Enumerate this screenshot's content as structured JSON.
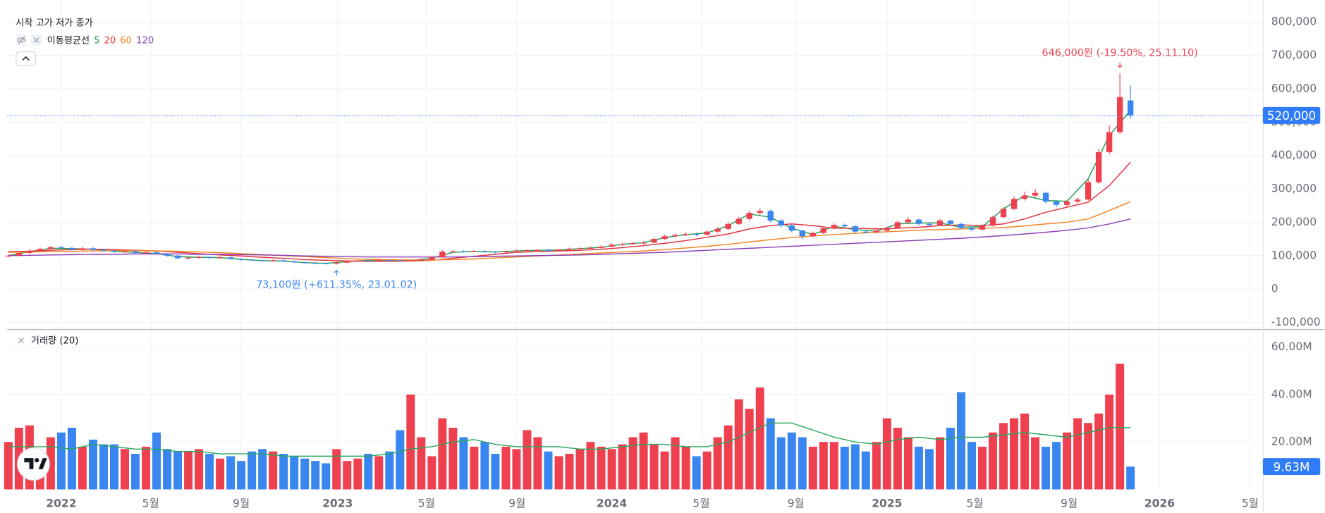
{
  "chart_data": {
    "type": "candlestick",
    "header": "시작 고가 저가 종가",
    "indicator_label": "이동평균선",
    "volume_label": "거래량 (20)",
    "up_color": "#ef4050",
    "down_color": "#3a86f0",
    "grid": true,
    "x": [
      -10,
      -8,
      -6,
      -4,
      -2,
      0,
      2,
      4,
      6,
      8,
      10,
      12,
      14,
      16,
      18,
      20,
      22,
      24,
      26,
      28,
      30,
      32,
      34,
      36,
      38,
      40,
      42,
      44,
      46,
      48,
      50,
      52,
      54,
      56,
      58,
      60,
      62,
      64,
      66,
      68,
      70,
      72,
      74,
      76,
      78,
      80,
      82,
      84,
      86,
      88,
      90,
      92,
      94,
      96,
      98,
      100,
      102,
      104,
      106,
      108,
      110,
      112,
      114,
      116,
      118,
      120,
      122,
      124,
      126,
      128,
      130,
      132,
      134,
      136,
      138,
      140,
      142,
      144,
      146,
      148,
      150,
      152,
      154,
      156,
      158,
      160,
      162,
      164,
      166,
      168,
      170,
      172,
      174,
      176,
      178,
      180,
      182,
      184,
      186,
      188,
      190,
      192,
      194,
      196,
      198,
      200,
      202
    ],
    "open": [
      98000,
      100000,
      108000,
      115000,
      120000,
      125000,
      123000,
      118000,
      122000,
      118000,
      115000,
      112000,
      113000,
      108000,
      110000,
      105000,
      100000,
      92000,
      94000,
      96000,
      93000,
      95000,
      90000,
      88000,
      86000,
      84000,
      86000,
      83000,
      80000,
      78000,
      77000,
      76000,
      79000,
      84000,
      86000,
      85000,
      87000,
      86000,
      85000,
      86000,
      88000,
      95000,
      112000,
      113000,
      112000,
      114000,
      112000,
      110000,
      113000,
      115000,
      116000,
      117000,
      116000,
      118000,
      121000,
      122000,
      123000,
      127000,
      133000,
      135000,
      137000,
      139000,
      150000,
      158000,
      162000,
      165000,
      163000,
      172000,
      180000,
      195000,
      210000,
      228000,
      234000,
      205000,
      190000,
      175000,
      158000,
      168000,
      182000,
      192000,
      188000,
      172000,
      170000,
      175000,
      182000,
      200000,
      208000,
      195000,
      192000,
      205000,
      195000,
      183000,
      178000,
      190000,
      215000,
      240000,
      270000,
      280000,
      288000,
      262000,
      252000,
      262000,
      268000,
      320000,
      410000,
      470000,
      565000
    ],
    "high": [
      104000,
      112000,
      119000,
      124000,
      129000,
      130000,
      126000,
      126000,
      125000,
      121000,
      118000,
      117000,
      116000,
      113000,
      112000,
      107000,
      102000,
      97000,
      99000,
      98000,
      98000,
      97000,
      92000,
      90000,
      88000,
      89000,
      88000,
      85000,
      82000,
      80000,
      79000,
      82000,
      86000,
      88000,
      88000,
      90000,
      89000,
      88000,
      89000,
      91000,
      98000,
      116000,
      117000,
      116000,
      117000,
      116000,
      114000,
      116000,
      118000,
      119000,
      120000,
      120000,
      121000,
      124000,
      125000,
      127000,
      131000,
      137000,
      139000,
      141000,
      143000,
      154000,
      162000,
      167000,
      170000,
      169000,
      176000,
      185000,
      200000,
      216000,
      235000,
      242000,
      238000,
      210000,
      194000,
      178000,
      172000,
      186000,
      197000,
      196000,
      191000,
      176000,
      179000,
      186000,
      205000,
      215000,
      211000,
      199000,
      209000,
      208000,
      198000,
      186000,
      194000,
      220000,
      246000,
      277000,
      292000,
      300000,
      292000,
      266000,
      267000,
      274000,
      328000,
      420000,
      490000,
      646000,
      610000
    ],
    "low": [
      95000,
      98000,
      105000,
      112000,
      117000,
      119000,
      115000,
      115000,
      114000,
      112000,
      108000,
      109000,
      105000,
      105000,
      102000,
      97000,
      89000,
      89000,
      91000,
      90000,
      91000,
      88000,
      85000,
      84000,
      82000,
      82000,
      81000,
      78000,
      76000,
      75000,
      74000,
      73100,
      78000,
      82000,
      83000,
      84000,
      84000,
      83000,
      83000,
      84000,
      87000,
      94000,
      109000,
      109000,
      110000,
      109000,
      107000,
      108000,
      111000,
      113000,
      114000,
      113000,
      114000,
      116000,
      119000,
      120000,
      121000,
      125000,
      130000,
      132000,
      134000,
      137000,
      147000,
      155000,
      158000,
      158000,
      160000,
      169000,
      177000,
      192000,
      206000,
      222000,
      200000,
      185000,
      170000,
      150000,
      155000,
      165000,
      179000,
      183000,
      168000,
      166000,
      167000,
      172000,
      180000,
      196000,
      191000,
      188000,
      190000,
      191000,
      179000,
      173000,
      176000,
      187000,
      212000,
      236000,
      265000,
      275000,
      256000,
      246000,
      248000,
      258000,
      265000,
      315000,
      405000,
      465000,
      510000
    ],
    "close": [
      100000,
      108000,
      115000,
      120000,
      125000,
      123000,
      118000,
      122000,
      118000,
      115000,
      112000,
      113000,
      108000,
      110000,
      105000,
      100000,
      92000,
      94000,
      96000,
      93000,
      95000,
      90000,
      88000,
      86000,
      84000,
      86000,
      83000,
      80000,
      78000,
      77000,
      76000,
      79000,
      84000,
      86000,
      85000,
      87000,
      86000,
      85000,
      86000,
      88000,
      95000,
      112000,
      113000,
      112000,
      114000,
      112000,
      110000,
      113000,
      115000,
      116000,
      117000,
      116000,
      118000,
      121000,
      122000,
      123000,
      127000,
      133000,
      135000,
      137000,
      139000,
      150000,
      158000,
      162000,
      165000,
      163000,
      172000,
      180000,
      195000,
      210000,
      228000,
      234000,
      205000,
      190000,
      175000,
      158000,
      168000,
      182000,
      192000,
      188000,
      172000,
      170000,
      175000,
      182000,
      200000,
      208000,
      195000,
      192000,
      205000,
      195000,
      183000,
      178000,
      190000,
      215000,
      240000,
      270000,
      280000,
      288000,
      262000,
      252000,
      262000,
      268000,
      320000,
      410000,
      470000,
      575000,
      520000
    ],
    "volume": [
      20000000,
      26000000,
      27000000,
      16000000,
      22000000,
      24000000,
      26000000,
      18000000,
      21000000,
      19000000,
      19000000,
      17000000,
      15000000,
      18000000,
      24000000,
      17000000,
      16000000,
      16000000,
      17000000,
      15000000,
      13000000,
      14000000,
      12000000,
      16000000,
      17000000,
      16000000,
      15000000,
      14000000,
      13000000,
      12000000,
      11000000,
      17000000,
      12000000,
      13000000,
      15000000,
      14000000,
      16000000,
      25000000,
      40000000,
      22000000,
      14000000,
      30000000,
      26000000,
      22000000,
      18000000,
      20000000,
      15000000,
      18000000,
      17000000,
      25000000,
      22000000,
      16000000,
      14000000,
      15000000,
      17000000,
      20000000,
      18000000,
      17000000,
      19000000,
      22000000,
      24000000,
      19000000,
      16000000,
      22000000,
      18000000,
      14000000,
      16000000,
      22000000,
      27000000,
      38000000,
      34000000,
      43000000,
      30000000,
      22000000,
      24000000,
      22000000,
      18000000,
      20000000,
      20000000,
      18000000,
      19000000,
      16000000,
      20000000,
      30000000,
      26000000,
      22000000,
      18000000,
      17000000,
      22000000,
      26000000,
      41000000,
      20000000,
      18000000,
      24000000,
      28000000,
      30000000,
      32000000,
      22000000,
      18000000,
      20000000,
      24000000,
      30000000,
      28000000,
      32000000,
      40000000,
      53000000,
      9630000
    ],
    "moving_averages": {
      "x": [
        -10,
        -6,
        -2,
        2,
        6,
        10,
        14,
        18,
        22,
        26,
        30,
        34,
        38,
        42,
        46,
        50,
        54,
        58,
        62,
        66,
        70,
        74,
        78,
        82,
        86,
        90,
        94,
        98,
        102,
        106,
        110,
        114,
        118,
        122,
        126,
        130,
        134,
        138,
        142,
        146,
        150,
        154,
        158,
        162,
        166,
        170,
        174,
        178,
        182,
        186,
        190,
        194,
        198,
        202
      ],
      "series": [
        {
          "name": "5",
          "color": "#1e9e50",
          "values": [
            100000,
            112000,
            122000,
            121000,
            119000,
            113000,
            110000,
            106000,
            97000,
            95000,
            94000,
            89000,
            85000,
            84000,
            79000,
            77000,
            82000,
            86000,
            86000,
            86000,
            92000,
            110000,
            113000,
            111000,
            114000,
            116000,
            117000,
            121000,
            125000,
            134000,
            139000,
            154000,
            163000,
            168000,
            190000,
            225000,
            215000,
            182000,
            163000,
            188000,
            178000,
            173000,
            195000,
            198000,
            198000,
            185000,
            187000,
            240000,
            280000,
            265000,
            263000,
            330000,
            460000,
            535000
          ]
        },
        {
          "name": "20",
          "color": "#e0303f",
          "values": [
            112000,
            113000,
            116000,
            118000,
            119000,
            118000,
            116000,
            114000,
            110000,
            106000,
            102000,
            99000,
            95000,
            92000,
            88000,
            86000,
            84000,
            83000,
            83000,
            84000,
            86000,
            92000,
            98000,
            104000,
            110000,
            112000,
            114000,
            116000,
            119000,
            124000,
            130000,
            137000,
            145000,
            155000,
            165000,
            180000,
            190000,
            195000,
            190000,
            182000,
            182000,
            180000,
            182000,
            185000,
            190000,
            192000,
            190000,
            195000,
            210000,
            230000,
            245000,
            260000,
            310000,
            380000
          ]
        },
        {
          "name": "60",
          "color": "#f5841f",
          "values": [
            110000,
            111000,
            112000,
            113000,
            114000,
            115000,
            115000,
            114000,
            113000,
            111000,
            109000,
            106000,
            103000,
            100000,
            97000,
            94000,
            91000,
            89000,
            88000,
            87000,
            87000,
            88000,
            90000,
            93000,
            96000,
            99000,
            102000,
            105000,
            108000,
            111000,
            114000,
            118000,
            123000,
            128000,
            134000,
            141000,
            148000,
            154000,
            159000,
            163000,
            167000,
            170000,
            173000,
            176000,
            178000,
            180000,
            182000,
            184000,
            189000,
            195000,
            200000,
            210000,
            235000,
            262000
          ]
        },
        {
          "name": "120",
          "color": "#8e3fb5",
          "values": [
            100000,
            101000,
            102000,
            103000,
            104000,
            104000,
            105000,
            105000,
            105000,
            104000,
            104000,
            103000,
            102000,
            101000,
            99000,
            98000,
            97000,
            96000,
            96000,
            96000,
            96000,
            96000,
            97000,
            98000,
            99000,
            100000,
            101000,
            102000,
            104000,
            106000,
            108000,
            110000,
            113000,
            116000,
            119000,
            122000,
            125000,
            128000,
            131000,
            134000,
            137000,
            140000,
            143000,
            146000,
            149000,
            152000,
            156000,
            160000,
            165000,
            170000,
            176000,
            183000,
            195000,
            210000
          ]
        }
      ]
    },
    "volume_ma": {
      "color": "#26a65b",
      "values": [
        18000000,
        18000000,
        18000000,
        17000000,
        19000000,
        18000000,
        17000000,
        17000000,
        16000000,
        16000000,
        15000000,
        15000000,
        15000000,
        14000000,
        14000000,
        14000000,
        14000000,
        14000000,
        15000000,
        17000000,
        18000000,
        20000000,
        21000000,
        19000000,
        18000000,
        18000000,
        18000000,
        17000000,
        17000000,
        18000000,
        19000000,
        19000000,
        18000000,
        18000000,
        20000000,
        24000000,
        28000000,
        28000000,
        25000000,
        22000000,
        20000000,
        19000000,
        21000000,
        22000000,
        21000000,
        22000000,
        22000000,
        23000000,
        24000000,
        23000000,
        22000000,
        24000000,
        26000000,
        26000000
      ]
    },
    "xlim": [
      -10.2,
      227
    ],
    "xticks": [
      {
        "value": 0,
        "label": "2022"
      },
      {
        "value": 16.9,
        "label": "5월"
      },
      {
        "value": 34,
        "label": "9월"
      },
      {
        "value": 52.2,
        "label": "2023"
      },
      {
        "value": 69,
        "label": "5월"
      },
      {
        "value": 86.1,
        "label": "9월"
      },
      {
        "value": 104,
        "label": "2024"
      },
      {
        "value": 120.9,
        "label": "5월"
      },
      {
        "value": 138.8,
        "label": "9월"
      },
      {
        "value": 156,
        "label": "2025"
      },
      {
        "value": 172.6,
        "label": "5월"
      },
      {
        "value": 190.4,
        "label": "9월"
      },
      {
        "value": 207.5,
        "label": "2026"
      },
      {
        "value": 224.6,
        "label": "5월"
      }
    ],
    "ylim": [
      -120000,
      828000
    ],
    "yticks": [
      {
        "value": 800000,
        "label": "800,000"
      },
      {
        "value": 700000,
        "label": "700,000"
      },
      {
        "value": 600000,
        "label": "600,000"
      },
      {
        "value": 500000,
        "label": "500,000"
      },
      {
        "value": 400000,
        "label": "400,000"
      },
      {
        "value": 300000,
        "label": "300,000"
      },
      {
        "value": 200000,
        "label": "200,000"
      },
      {
        "value": 100000,
        "label": "100,000"
      },
      0,
      {
        "value": -100000,
        "label": "-100,000"
      }
    ],
    "volume_ylim": [
      -700000,
      66900000
    ],
    "volume_yticks": [
      {
        "value": 60000000,
        "label": "60.00M"
      },
      {
        "value": 40000000,
        "label": "40.00M"
      },
      {
        "value": 20000000,
        "label": "20.00M"
      }
    ],
    "last_price": {
      "value": 520000,
      "label": "520,000"
    },
    "last_volume": {
      "value": 9630000,
      "label": "9.63M"
    },
    "annotations": [
      {
        "text": "646,000원 (-19.50%, 25.11.10)",
        "x": 200,
        "y": 646000
      },
      {
        "text": "73,100원 (+611.35%, 23.01.02)",
        "x": 52,
        "y": 73100
      }
    ]
  }
}
